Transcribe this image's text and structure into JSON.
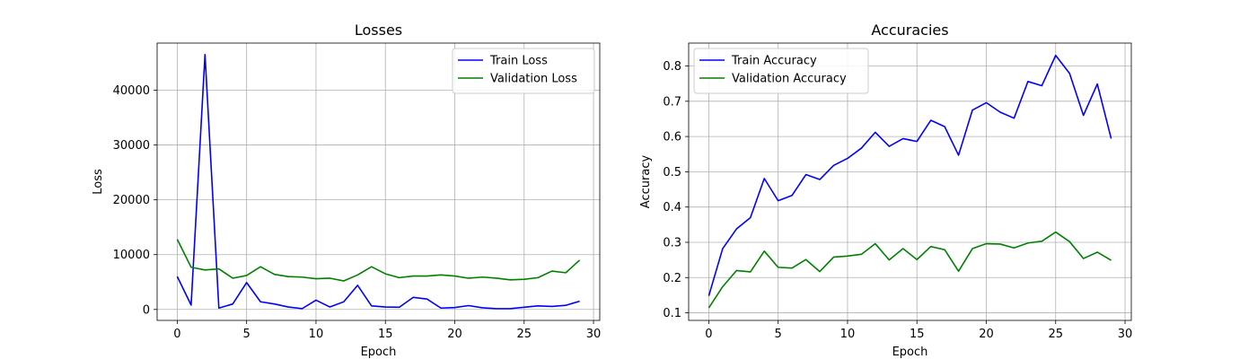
{
  "chart_data": [
    {
      "type": "line",
      "title": "Losses",
      "xlabel": "Epoch",
      "ylabel": "Loss",
      "xlim": [
        -1.45,
        30.45
      ],
      "ylim": [
        -2000,
        48600
      ],
      "xticks": [
        0,
        5,
        10,
        15,
        20,
        25,
        30
      ],
      "yticks": [
        0,
        10000,
        20000,
        30000,
        40000
      ],
      "grid": true,
      "legend_position": "top-right",
      "x": [
        0,
        1,
        2,
        3,
        4,
        5,
        6,
        7,
        8,
        9,
        10,
        11,
        12,
        13,
        14,
        15,
        16,
        17,
        18,
        19,
        20,
        21,
        22,
        23,
        24,
        25,
        26,
        27,
        28,
        29
      ],
      "series": [
        {
          "name": "Train Loss",
          "color": "#0000ff",
          "values": [
            6000,
            800,
            46500,
            250,
            1000,
            4900,
            1400,
            1000,
            450,
            150,
            1700,
            450,
            1400,
            4400,
            650,
            450,
            400,
            2200,
            1900,
            250,
            350,
            700,
            300,
            150,
            150,
            400,
            650,
            550,
            750,
            1500
          ]
        },
        {
          "name": "Validation Loss",
          "color": "#008000",
          "values": [
            12800,
            7700,
            7200,
            7400,
            5700,
            6200,
            7800,
            6400,
            6000,
            5900,
            5600,
            5700,
            5200,
            6300,
            7800,
            6500,
            5800,
            6100,
            6100,
            6300,
            6100,
            5700,
            5900,
            5700,
            5400,
            5500,
            5800,
            7000,
            6700,
            9000
          ]
        }
      ]
    },
    {
      "type": "line",
      "title": "Accuracies",
      "xlabel": "Epoch",
      "ylabel": "Accuracy",
      "xlim": [
        -1.45,
        30.45
      ],
      "ylim": [
        0.0785,
        0.865
      ],
      "xticks": [
        0,
        5,
        10,
        15,
        20,
        25,
        30
      ],
      "yticks": [
        0.1,
        0.2,
        0.3,
        0.4,
        0.5,
        0.6,
        0.7,
        0.8
      ],
      "grid": true,
      "legend_position": "top-left",
      "x": [
        0,
        1,
        2,
        3,
        4,
        5,
        6,
        7,
        8,
        9,
        10,
        11,
        12,
        13,
        14,
        15,
        16,
        17,
        18,
        19,
        20,
        21,
        22,
        23,
        24,
        25,
        26,
        27,
        28,
        29
      ],
      "series": [
        {
          "name": "Train Accuracy",
          "color": "#0000ff",
          "values": [
            0.148,
            0.282,
            0.338,
            0.37,
            0.481,
            0.418,
            0.433,
            0.492,
            0.478,
            0.518,
            0.538,
            0.567,
            0.612,
            0.572,
            0.594,
            0.586,
            0.646,
            0.628,
            0.547,
            0.675,
            0.696,
            0.669,
            0.652,
            0.756,
            0.744,
            0.83,
            0.779,
            0.66,
            0.749,
            0.594
          ]
        },
        {
          "name": "Validation Accuracy",
          "color": "#008000",
          "values": [
            0.114,
            0.174,
            0.22,
            0.216,
            0.275,
            0.229,
            0.227,
            0.251,
            0.217,
            0.258,
            0.261,
            0.266,
            0.296,
            0.25,
            0.282,
            0.251,
            0.288,
            0.279,
            0.218,
            0.282,
            0.296,
            0.295,
            0.284,
            0.298,
            0.303,
            0.329,
            0.302,
            0.254,
            0.272,
            0.249
          ]
        }
      ]
    }
  ]
}
